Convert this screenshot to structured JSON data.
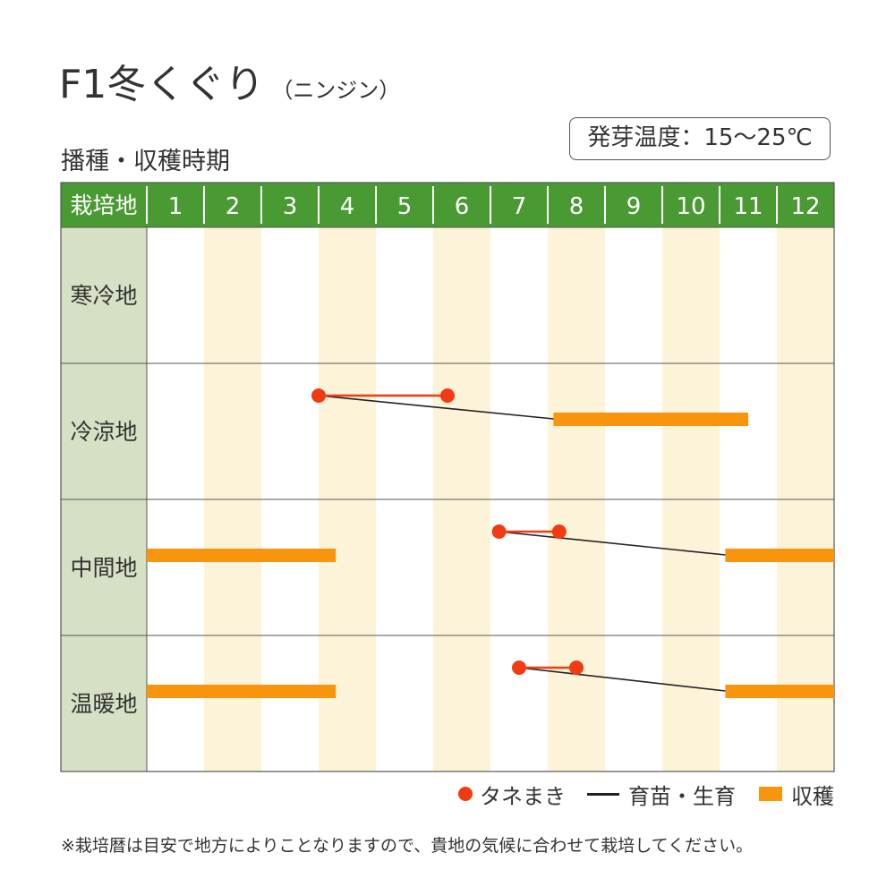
{
  "title": {
    "main": "F1冬くぐり",
    "sub": "（ニンジン）"
  },
  "section_title": "播種・収穫時期",
  "germination": "発芽温度：15～25℃",
  "colors": {
    "header_bg": "#4a9a33",
    "region_bg": "#d6e0c5",
    "stripe_bg": "#fdf3d8",
    "sowing": "#f23a13",
    "growing": "#222222",
    "harvest": "#f9940d"
  },
  "legend": {
    "sowing": "タネまき",
    "growing": "育苗・生育",
    "harvest": "収穫"
  },
  "note": "※栽培暦は目安で地方によりことなりますので、貴地の気候に合わせて栽培してください。",
  "chart_data": {
    "type": "table",
    "corner_label": "栽培地",
    "months": [
      "1",
      "2",
      "3",
      "4",
      "5",
      "6",
      "7",
      "8",
      "9",
      "10",
      "11",
      "12"
    ],
    "regions": [
      {
        "name": "寒冷地",
        "sowing": null,
        "growing": null,
        "harvest": []
      },
      {
        "name": "冷涼地",
        "sowing": [
          4.0,
          6.25
        ],
        "growing": [
          4.0,
          8.1
        ],
        "harvest": [
          [
            8.1,
            11.5
          ]
        ]
      },
      {
        "name": "中間地",
        "sowing": [
          7.15,
          8.2
        ],
        "growing": [
          7.15,
          11.1
        ],
        "harvest": [
          [
            1.0,
            4.3
          ],
          [
            11.1,
            13.0
          ]
        ]
      },
      {
        "name": "温暖地",
        "sowing": [
          7.5,
          8.5
        ],
        "growing": [
          7.5,
          11.1
        ],
        "harvest": [
          [
            1.0,
            4.3
          ],
          [
            11.1,
            13.0
          ]
        ]
      }
    ]
  }
}
